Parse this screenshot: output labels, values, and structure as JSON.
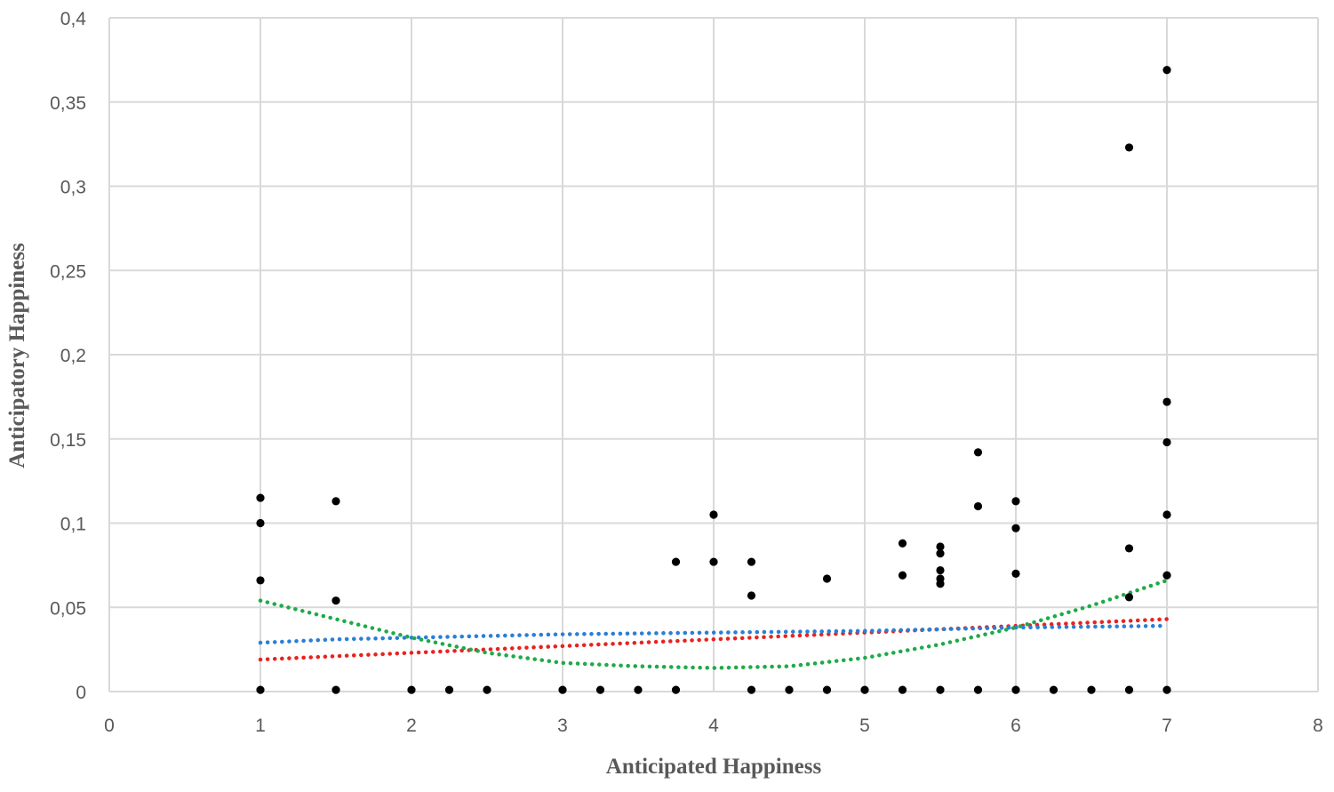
{
  "chart_data": {
    "type": "scatter",
    "xlabel": "Anticipated Happiness",
    "ylabel": "Anticipatory Happiness",
    "xlim": [
      0,
      8
    ],
    "ylim": [
      0,
      0.4
    ],
    "xticks": [
      "0",
      "1",
      "2",
      "3",
      "4",
      "5",
      "6",
      "7",
      "8"
    ],
    "yticks": [
      "0",
      "0,05",
      "0,1",
      "0,15",
      "0,2",
      "0,25",
      "0,3",
      "0,35",
      "0,4"
    ],
    "grid": true,
    "points": [
      [
        1,
        0.115
      ],
      [
        1,
        0.1
      ],
      [
        1,
        0.066
      ],
      [
        1,
        0.001
      ],
      [
        1.5,
        0.113
      ],
      [
        1.5,
        0.054
      ],
      [
        1.5,
        0.001
      ],
      [
        2,
        0.001
      ],
      [
        2.25,
        0.001
      ],
      [
        2.5,
        0.001
      ],
      [
        3,
        0.001
      ],
      [
        3.25,
        0.001
      ],
      [
        3.5,
        0.001
      ],
      [
        3.75,
        0.077
      ],
      [
        3.75,
        0.001
      ],
      [
        4,
        0.105
      ],
      [
        4,
        0.077
      ],
      [
        4.25,
        0.077
      ],
      [
        4.25,
        0.057
      ],
      [
        4.25,
        0.001
      ],
      [
        4.5,
        0.001
      ],
      [
        4.75,
        0.067
      ],
      [
        4.75,
        0.001
      ],
      [
        5,
        0.001
      ],
      [
        5.25,
        0.088
      ],
      [
        5.25,
        0.069
      ],
      [
        5.25,
        0.001
      ],
      [
        5.5,
        0.086
      ],
      [
        5.5,
        0.082
      ],
      [
        5.5,
        0.072
      ],
      [
        5.5,
        0.067
      ],
      [
        5.5,
        0.064
      ],
      [
        5.5,
        0.001
      ],
      [
        5.75,
        0.142
      ],
      [
        5.75,
        0.11
      ],
      [
        5.75,
        0.001
      ],
      [
        6,
        0.113
      ],
      [
        6,
        0.097
      ],
      [
        6,
        0.07
      ],
      [
        6,
        0.001
      ],
      [
        6.25,
        0.001
      ],
      [
        6.5,
        0.001
      ],
      [
        6.75,
        0.323
      ],
      [
        6.75,
        0.085
      ],
      [
        6.75,
        0.056
      ],
      [
        6.75,
        0.001
      ],
      [
        7,
        0.369
      ],
      [
        7,
        0.172
      ],
      [
        7,
        0.148
      ],
      [
        7,
        0.105
      ],
      [
        7,
        0.069
      ],
      [
        7,
        0.001
      ]
    ],
    "point_color": "#000000",
    "trendlines": [
      {
        "type": "linear",
        "color": "#e8231f",
        "x": [
          1,
          7
        ],
        "y": [
          0.019,
          0.043
        ]
      },
      {
        "type": "log-like",
        "color": "#2a7fd4",
        "x": [
          1,
          1.5,
          2,
          3,
          4,
          5,
          6,
          7
        ],
        "y": [
          0.029,
          0.031,
          0.032,
          0.034,
          0.035,
          0.036,
          0.038,
          0.039
        ]
      },
      {
        "type": "polynomial",
        "color": "#1faa4a",
        "x": [
          1,
          1.5,
          2,
          2.5,
          3,
          3.5,
          4,
          4.5,
          5,
          5.5,
          6,
          6.5,
          7
        ],
        "y": [
          0.054,
          0.043,
          0.032,
          0.023,
          0.017,
          0.015,
          0.014,
          0.015,
          0.02,
          0.028,
          0.038,
          0.051,
          0.066
        ]
      }
    ]
  }
}
